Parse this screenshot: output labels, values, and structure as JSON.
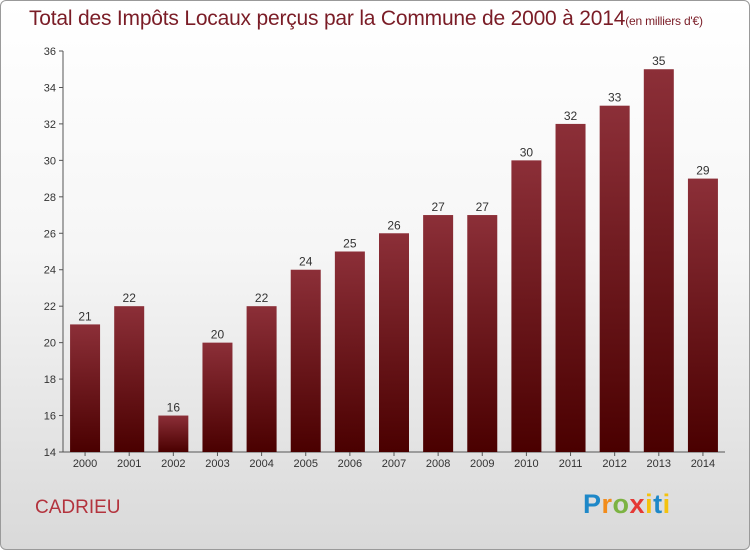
{
  "title": "Total des Impôts Locaux perçus par la Commune de 2000 à 2014",
  "title_unit": "(en milliers d'€)",
  "commune": "CADRIEU",
  "logo": "Proxiti",
  "colors": {
    "bar_top": "#8c2f38",
    "bar_bottom": "#4a0000",
    "title": "#7a1c26",
    "commune": "#b3333d"
  },
  "chart_data": {
    "type": "bar",
    "title": "Total des Impôts Locaux perçus par la Commune de 2000 à 2014",
    "xlabel": "",
    "ylabel": "en milliers d'€",
    "categories": [
      "2000",
      "2001",
      "2002",
      "2003",
      "2004",
      "2005",
      "2006",
      "2007",
      "2008",
      "2009",
      "2010",
      "2011",
      "2012",
      "2013",
      "2014"
    ],
    "values": [
      21,
      22,
      16,
      20,
      22,
      24,
      25,
      26,
      27,
      27,
      30,
      32,
      33,
      35,
      29
    ],
    "ylim": [
      14,
      36
    ],
    "yticks": [
      14,
      16,
      18,
      20,
      22,
      24,
      26,
      28,
      30,
      32,
      34,
      36
    ],
    "grid": false,
    "legend": "none"
  }
}
